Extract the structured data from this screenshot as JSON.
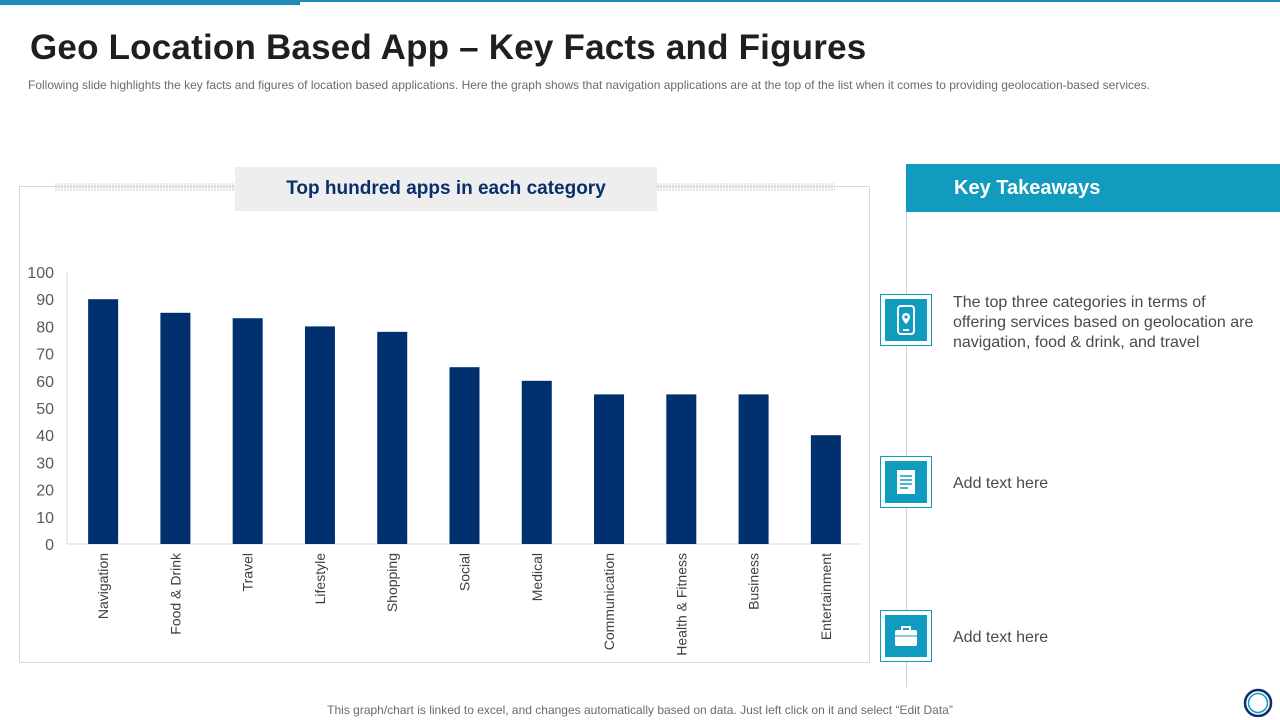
{
  "slide": {
    "title": "Geo Location Based App – Key Facts and Figures",
    "subtitle": "Following slide highlights the key facts and figures  of location based applications. Here the graph  shows that navigation  applications are at the top of the list when  it comes to providing  geolocation-based services.",
    "footer_note": "This graph/chart is linked to excel,  and changes automatically based on data. Just left click on it and select “Edit Data”"
  },
  "chart_data": {
    "type": "bar",
    "title": "Top hundred apps in each category",
    "categories": [
      "Navigation",
      "Food & Drink",
      "Travel",
      "Lifestyle",
      "Shopping",
      "Social",
      "Medical",
      "Communication",
      "Health & Fitness",
      "Business",
      "Entertainment"
    ],
    "values": [
      90,
      85,
      83,
      80,
      78,
      65,
      60,
      55,
      55,
      55,
      40
    ],
    "ylim": [
      0,
      100
    ],
    "yticks": [
      0,
      10,
      20,
      30,
      40,
      50,
      60,
      70,
      80,
      90,
      100
    ],
    "xlabel": "",
    "ylabel": "",
    "bar_color": "#00306e"
  },
  "takeaways": {
    "header": "Key Takeaways",
    "items": [
      {
        "icon": "smartphone-location-icon",
        "text": "The top three categories in terms of offering services based on geolocation are navigation, food & drink, and travel"
      },
      {
        "icon": "document-icon",
        "text": "Add text here"
      },
      {
        "icon": "briefcase-icon",
        "text": "Add text here"
      }
    ]
  },
  "colors": {
    "accent": "#119bbf",
    "bar": "#00306e",
    "chart_title": "#0b2f6a"
  }
}
